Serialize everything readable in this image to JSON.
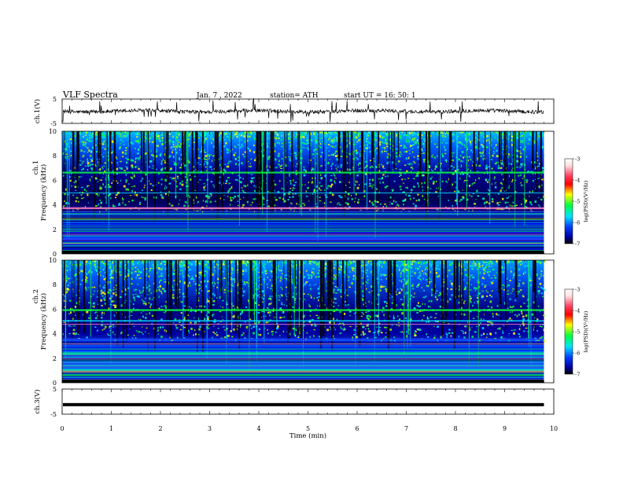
{
  "header": {
    "title": "VLF  Spectra",
    "date": "Jan.  7  , 2022",
    "station": "station= ATH",
    "start": "start  UT  =    16: 50: 1"
  },
  "colors": {
    "deep": "#000060",
    "blue": "#0000ff",
    "cyan": "#00e0ff",
    "green": "#00ff40",
    "yellow": "#ffff00",
    "red": "#ff0000",
    "pink": "#ff80c0"
  },
  "chart_data": [
    {
      "type": "line",
      "name": "ch1-waveform",
      "ylabel": "ch.1(V)",
      "ylim": [
        -5,
        5
      ],
      "yticks": [
        "5",
        "-5"
      ],
      "xlim": [
        0,
        10
      ],
      "description_values": "noisy waveform around 0 V with spikes"
    },
    {
      "type": "heatmap",
      "name": "ch1-spectrogram",
      "ylabel_top": "ch.1",
      "ylabel": "Frequency  (kHz)",
      "ylim": [
        0,
        10
      ],
      "yticks": [
        "10",
        "8",
        "6",
        "4",
        "2",
        "0"
      ],
      "xlim": [
        0,
        9.8
      ],
      "colorbar": {
        "label": "log(PSD)(V²/Hz)",
        "ticks": [
          "-3",
          "-4",
          "-5",
          "-6",
          "-7"
        ],
        "range": [
          -7,
          -3
        ]
      },
      "bands_khz": [
        0.2,
        0.7,
        0.9,
        1.3,
        1.6,
        2.0,
        2.3,
        2.9,
        3.3,
        3.8,
        5.0,
        6.7
      ]
    },
    {
      "type": "heatmap",
      "name": "ch2-spectrogram",
      "ylabel_top": "ch.2",
      "ylabel": "Frequency  (kHz)",
      "ylim": [
        0,
        10
      ],
      "yticks": [
        "10",
        "8",
        "6",
        "4",
        "2",
        "0"
      ],
      "xlim": [
        0,
        9.8
      ],
      "colorbar": {
        "label": "log(PSD)(V²/Hz)",
        "ticks": [
          "-3",
          "-4",
          "-5",
          "-6",
          "-7"
        ],
        "range": [
          -7,
          -3
        ]
      },
      "bands_khz": [
        0.3,
        0.7,
        1.0,
        1.5,
        2.0,
        2.4,
        2.8,
        3.2,
        3.6,
        4.8,
        5.1,
        6.0
      ]
    },
    {
      "type": "line",
      "name": "ch3-waveform",
      "ylabel": "ch.3(V)",
      "ylim": [
        -5,
        5
      ],
      "yticks": [
        "5",
        "-5"
      ],
      "xlim": [
        0,
        10
      ],
      "level": -1.2
    }
  ],
  "xaxis": {
    "label": "Time  (min)",
    "ticks": [
      "0",
      "1",
      "2",
      "3",
      "4",
      "5",
      "6",
      "7",
      "8",
      "9",
      "10"
    ],
    "range": [
      0,
      10
    ]
  }
}
